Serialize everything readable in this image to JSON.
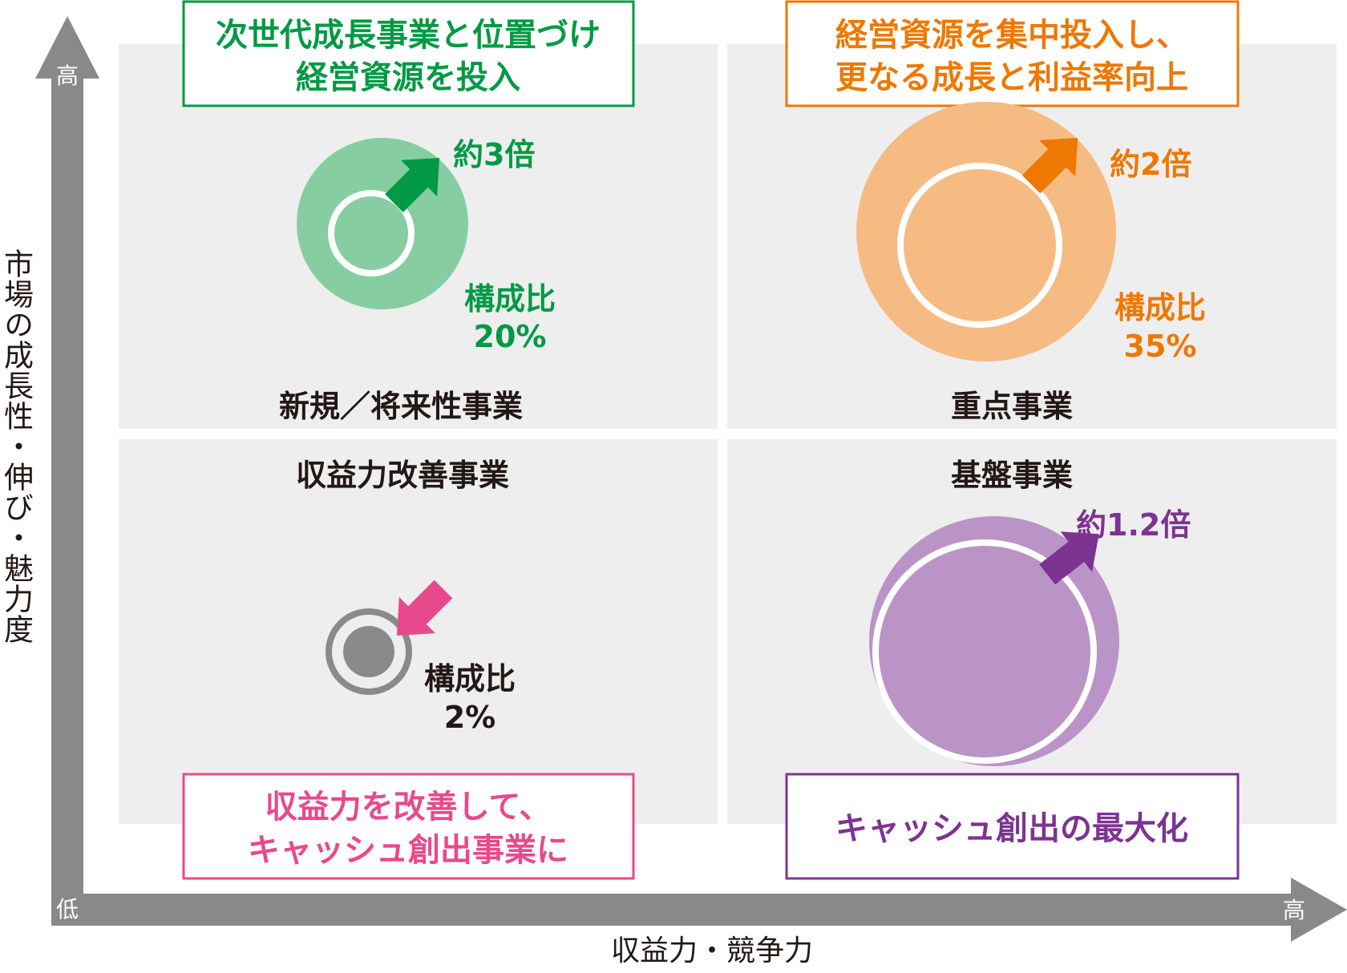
{
  "axes": {
    "y_label": "市場の成長性・伸び・魅力度",
    "x_label": "収益力・競争力",
    "y_high": "高",
    "x_high": "高",
    "origin_low": "低"
  },
  "colors": {
    "quadrant_bg": "#eeeeef",
    "axis": "#898989",
    "green": "#009a44",
    "green_light": "#86cea1",
    "orange": "#ee7800",
    "orange_light": "#f6bb83",
    "pink": "#e8498c",
    "gray_dark": "#8a8a8a",
    "purple": "#7d3391",
    "purple_light": "#bb94c7"
  },
  "quadrants": {
    "top_left": {
      "name": "新規／将来性事業",
      "strategy_line1": "次世代成長事業と位置づけ",
      "strategy_line2": "経営資源を投入",
      "growth": "約3倍",
      "ratio_label": "構成比",
      "ratio_value": "20%"
    },
    "top_right": {
      "name": "重点事業",
      "strategy_line1": "経営資源を集中投入し、",
      "strategy_line2": "更なる成長と利益率向上",
      "growth": "約2倍",
      "ratio_label": "構成比",
      "ratio_value": "35%"
    },
    "bottom_left": {
      "name": "収益力改善事業",
      "strategy_line1": "収益力を改善して、",
      "strategy_line2": "キャッシュ創出事業に",
      "ratio_label": "構成比",
      "ratio_value": "2%"
    },
    "bottom_right": {
      "name": "基盤事業",
      "strategy_line1": "キャッシュ創出の最大化",
      "growth": "約1.2倍"
    }
  }
}
